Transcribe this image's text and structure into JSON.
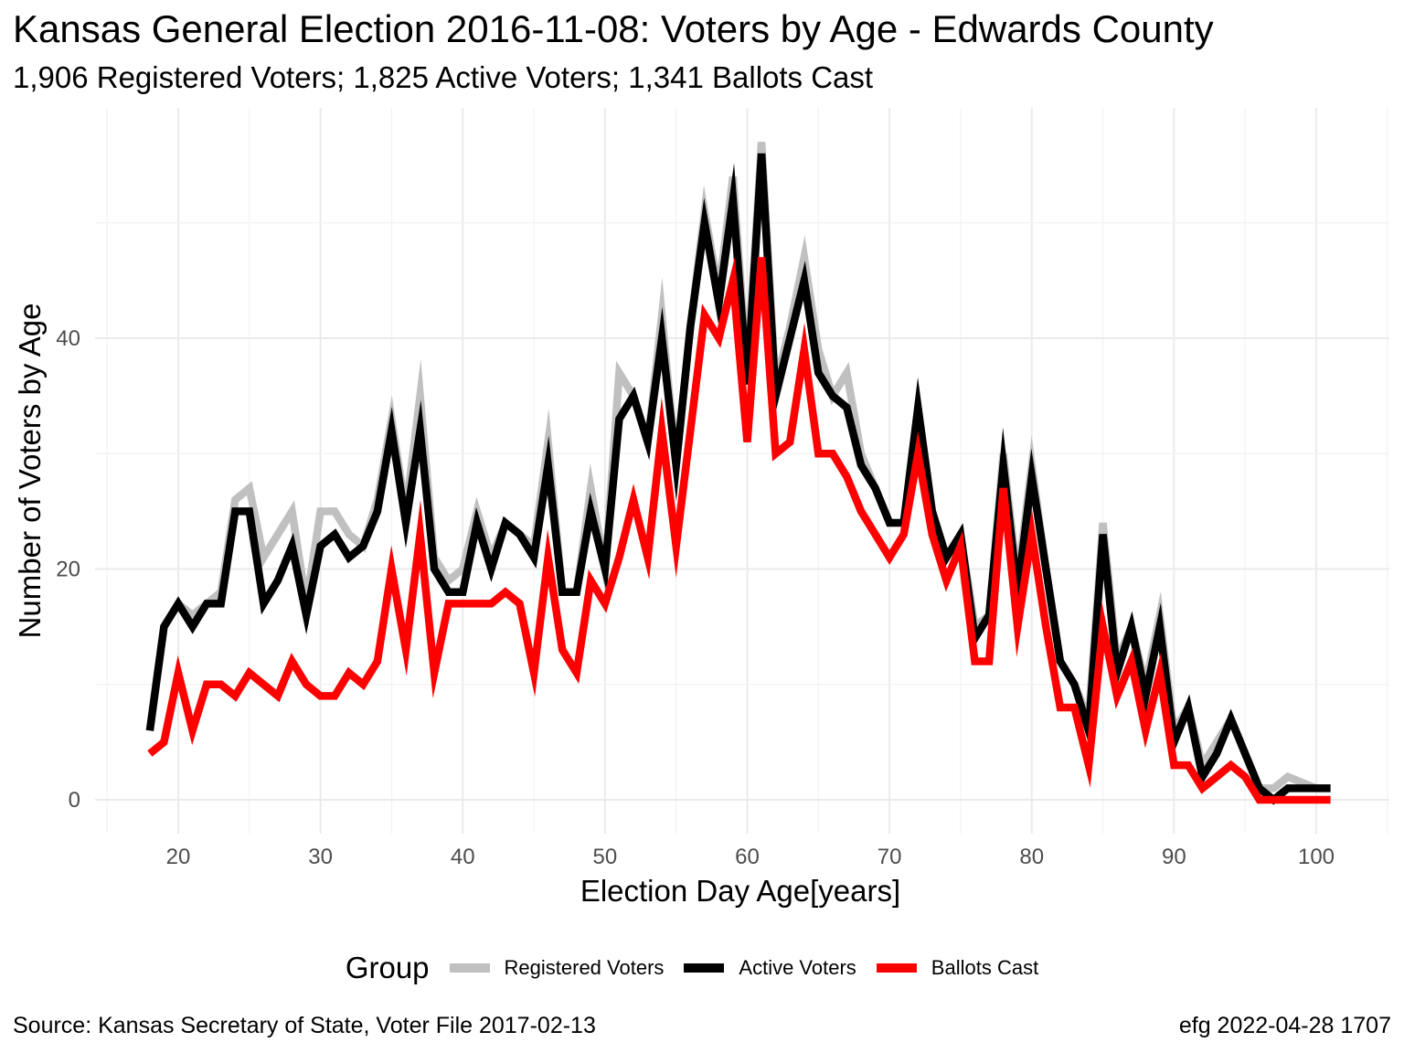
{
  "title": "Kansas General Election 2016-11-08:  Voters by Age - Edwards County",
  "subtitle": "1,906 Registered Voters; 1,825 Active Voters; 1,341 Ballots Cast",
  "caption_left": "Source:  Kansas Secretary of State, Voter File  2017-02-13",
  "caption_right": "efg 2022-04-28 1707",
  "legend": {
    "title": "Group",
    "items": [
      {
        "label": "Registered Voters",
        "color": "#c0c0c0"
      },
      {
        "label": "Active Voters",
        "color": "#000000"
      },
      {
        "label": "Ballots Cast",
        "color": "#ff0000"
      }
    ]
  },
  "chart_data": {
    "type": "line",
    "xlabel": "Election Day Age[years]",
    "ylabel": "Number of Voters by Age",
    "xlim": [
      15,
      105
    ],
    "ylim": [
      -5,
      60
    ],
    "xticks": [
      20,
      30,
      40,
      50,
      60,
      70,
      80,
      90,
      100
    ],
    "yticks": [
      0,
      20,
      40
    ],
    "grid": true,
    "legend_position": "bottom",
    "x": [
      18,
      19,
      20,
      21,
      22,
      23,
      24,
      25,
      26,
      27,
      28,
      29,
      30,
      31,
      32,
      33,
      34,
      35,
      36,
      37,
      38,
      39,
      40,
      41,
      42,
      43,
      44,
      45,
      46,
      47,
      48,
      49,
      50,
      51,
      52,
      53,
      54,
      55,
      56,
      57,
      58,
      59,
      60,
      61,
      62,
      63,
      64,
      65,
      66,
      67,
      68,
      69,
      70,
      71,
      72,
      73,
      74,
      75,
      76,
      77,
      78,
      79,
      80,
      81,
      82,
      83,
      84,
      85,
      86,
      87,
      88,
      89,
      90,
      91,
      92,
      93,
      94,
      95,
      96,
      97,
      98,
      99,
      100,
      101
    ],
    "series": [
      {
        "name": "Registered Voters",
        "color": "#c0c0c0",
        "values": [
          6,
          15,
          17,
          16,
          17,
          18,
          26,
          27,
          21,
          23,
          25,
          17,
          25,
          25,
          23,
          22,
          26,
          33,
          25,
          35,
          21,
          19,
          20,
          25,
          21,
          24,
          23,
          22,
          31,
          18,
          18,
          27,
          20,
          37,
          35,
          31,
          42,
          29,
          41,
          51,
          44,
          54,
          37,
          57,
          36,
          41,
          47,
          39,
          35,
          37,
          30,
          27,
          24,
          24,
          34,
          25,
          21,
          23,
          15,
          16,
          30,
          19,
          29,
          20,
          12,
          10,
          7,
          24,
          12,
          15,
          10,
          16,
          6,
          8,
          3,
          5,
          7,
          4,
          1,
          1,
          2,
          1.5,
          1,
          1
        ]
      },
      {
        "name": "Active Voters",
        "color": "#000000",
        "values": [
          6,
          15,
          17,
          15,
          17,
          17,
          25,
          25,
          17,
          19,
          22,
          16,
          22,
          23,
          21,
          22,
          25,
          32,
          24,
          32,
          20,
          18,
          18,
          24,
          20,
          24,
          23,
          21,
          29,
          18,
          18,
          25,
          20,
          33,
          35,
          31,
          40,
          29,
          41,
          50,
          43,
          52,
          36,
          56,
          35,
          40,
          45,
          37,
          35,
          34,
          29,
          27,
          24,
          24,
          34,
          25,
          21,
          23,
          14,
          16,
          29,
          18,
          28,
          20,
          12,
          10,
          6,
          23,
          11,
          15,
          9,
          15,
          5,
          8,
          2,
          4,
          7,
          4,
          1,
          0,
          1,
          1,
          1,
          1
        ]
      },
      {
        "name": "Ballots Cast",
        "color": "#ff0000",
        "values": [
          4,
          5,
          11,
          6,
          10,
          10,
          9,
          11,
          10,
          9,
          12,
          10,
          9,
          9,
          11,
          10,
          12,
          20,
          13,
          23,
          11,
          17,
          17,
          17,
          17,
          18,
          17,
          11,
          21,
          13,
          11,
          19,
          17,
          21,
          26,
          21,
          32,
          22,
          32,
          42,
          40,
          45,
          31,
          47,
          30,
          31,
          39,
          30,
          30,
          28,
          25,
          23,
          21,
          23,
          30,
          23,
          19,
          22,
          12,
          12,
          27,
          15,
          23,
          15,
          8,
          8,
          3,
          15,
          9,
          12,
          6,
          11,
          3,
          3,
          1,
          2,
          3,
          2,
          0,
          0,
          0,
          0,
          0,
          0
        ]
      }
    ]
  }
}
